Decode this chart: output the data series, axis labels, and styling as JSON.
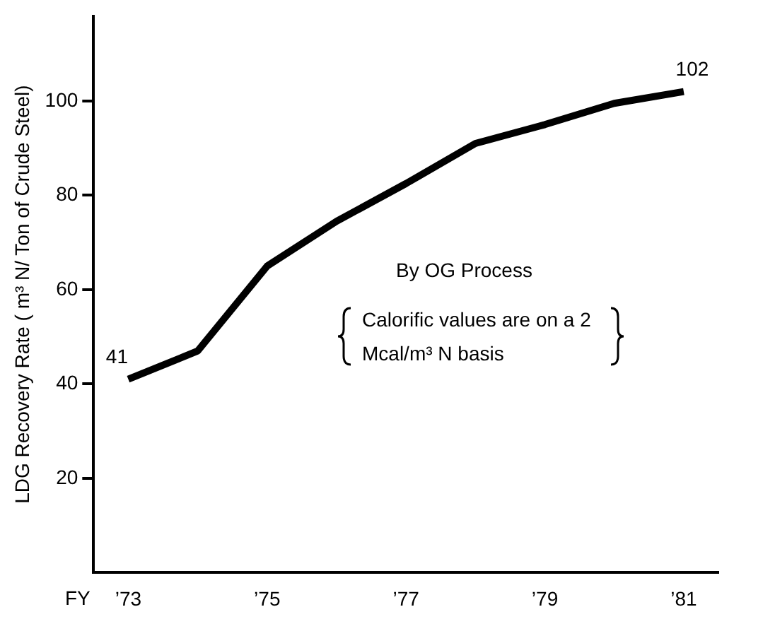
{
  "chart_data": {
    "type": "line",
    "ylabel": "LDG Recovery Rate ( m³ N/ Ton of Crude Steel)",
    "xlabel": "FY",
    "categories": [
      "’73",
      null,
      "’75",
      null,
      "’77",
      null,
      "’79",
      null,
      "’81"
    ],
    "series": [
      {
        "color": "#000000",
        "values": [
          41,
          47,
          65,
          74.5,
          82.5,
          91,
          95,
          99.5,
          102
        ],
        "value_labels": [
          "41",
          null,
          null,
          null,
          null,
          null,
          null,
          null,
          "102"
        ]
      }
    ],
    "ylim": [
      0,
      118
    ],
    "yticks": [
      20,
      40,
      60,
      80,
      100
    ],
    "grid": false,
    "legend": false,
    "marker": "none",
    "line_style": "solid",
    "annotations": [
      "By OG Process",
      "Calorific values are on a 2 Mcal/m³ N basis"
    ]
  }
}
